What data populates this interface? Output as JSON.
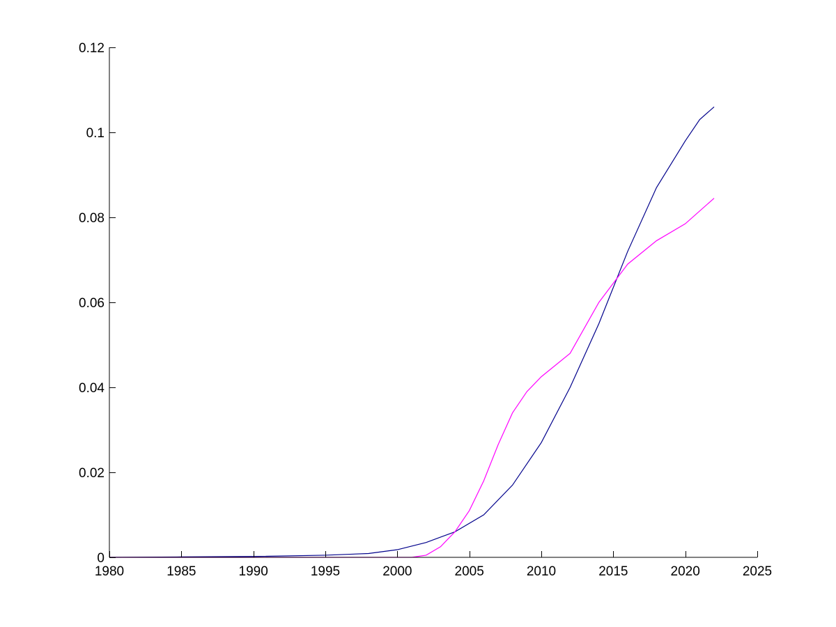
{
  "chart_data": {
    "type": "line",
    "title": "",
    "xlabel": "",
    "ylabel": "",
    "xlim": [
      1980,
      2025
    ],
    "ylim": [
      0,
      0.12
    ],
    "xticks": [
      1980,
      1985,
      1990,
      1995,
      2000,
      2005,
      2010,
      2015,
      2020,
      2025
    ],
    "yticks": [
      0,
      0.02,
      0.04,
      0.06,
      0.08,
      0.1,
      0.12
    ],
    "xtick_labels": [
      "1980",
      "1985",
      "1990",
      "1995",
      "2000",
      "2005",
      "2010",
      "2015",
      "2020",
      "2025"
    ],
    "ytick_labels": [
      "0",
      "0.02",
      "0.04",
      "0.06",
      "0.08",
      "0.1",
      "0.12"
    ],
    "grid": false,
    "series": [
      {
        "color": "#00008b",
        "x": [
          1980,
          1985,
          1990,
          1995,
          1998,
          2000,
          2002,
          2004,
          2006,
          2008,
          2010,
          2012,
          2014,
          2016,
          2018,
          2020,
          2021,
          2022
        ],
        "y": [
          0.0,
          0.0001,
          0.0002,
          0.0005,
          0.0009,
          0.0018,
          0.0035,
          0.006,
          0.01,
          0.017,
          0.027,
          0.04,
          0.055,
          0.072,
          0.087,
          0.098,
          0.103,
          0.106
        ]
      },
      {
        "color": "#ff00ff",
        "x": [
          1980,
          1985,
          1990,
          1995,
          2000,
          2001,
          2002,
          2003,
          2004,
          2005,
          2006,
          2007,
          2008,
          2009,
          2010,
          2012,
          2014,
          2016,
          2018,
          2020,
          2022
        ],
        "y": [
          0.0,
          0.0,
          0.0,
          0.0,
          0.0,
          0.0,
          0.0005,
          0.0025,
          0.006,
          0.011,
          0.018,
          0.0265,
          0.034,
          0.039,
          0.0425,
          0.048,
          0.06,
          0.069,
          0.0745,
          0.0785,
          0.0845
        ]
      }
    ]
  }
}
